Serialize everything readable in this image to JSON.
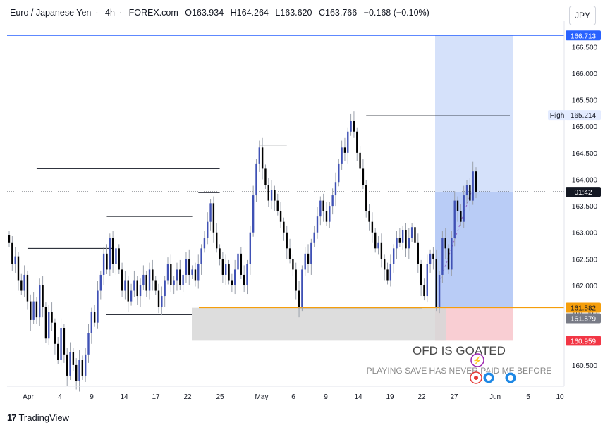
{
  "header": {
    "symbol": "Euro / Japanese Yen",
    "interval": "4h",
    "exchange": "FOREX.com",
    "open": "O163.934",
    "high": "H164.264",
    "low": "L163.620",
    "close": "C163.766",
    "change": "−0.168 (−0.10%)",
    "sep": "·"
  },
  "currency_button": "JPY",
  "footer": {
    "brand": "TradingView"
  },
  "annotations": {
    "title": "OFD IS GOATED",
    "subtitle": "PLAYING SAVE HAS NEVER PAID ME BEFORE"
  },
  "price_labels": {
    "top": "166.713",
    "high_tag": "High",
    "high_value": "165.214",
    "timer": "01:42",
    "stop_upper": "161.582",
    "stop_lower": "161.579",
    "loss": "160.959"
  },
  "colors": {
    "bull_body": "#3f51b5",
    "bear_body": "#000000",
    "profit_zone": "#b9cdf6",
    "loss_zone": "#f7bec4",
    "demand_zone": "#d7d7d7",
    "stop_line": "#f59e0b",
    "top_line": "#2962ff"
  },
  "chart_data": {
    "type": "candlestick",
    "symbol": "EURJPY",
    "timeframe": "4h",
    "ylim": [
      160.1,
      166.85
    ],
    "y_ticks": [
      "160.500",
      "161.000",
      "161.500",
      "162.000",
      "162.500",
      "163.000",
      "163.500",
      "164.000",
      "164.500",
      "165.000",
      "165.500",
      "166.000",
      "166.500"
    ],
    "x_ticks": [
      "Apr",
      "4",
      "9",
      "14",
      "17",
      "22",
      "25",
      "May",
      "6",
      "9",
      "14",
      "19",
      "22",
      "27",
      "Jun",
      "5",
      "10"
    ],
    "current_price": 163.766,
    "position": {
      "entry": 161.582,
      "stop": 160.959,
      "target": 166.713,
      "direction": "long"
    },
    "key_highs": [
      162.7,
      163.3,
      163.75,
      164.2,
      164.65,
      165.2
    ],
    "key_low": 161.58,
    "closes": [
      162.8,
      162.4,
      162.55,
      162.1,
      161.9,
      162.2,
      161.7,
      161.35,
      161.7,
      161.4,
      162.0,
      161.6,
      161.0,
      161.5,
      161.3,
      160.9,
      160.6,
      161.2,
      160.7,
      160.3,
      160.75,
      160.5,
      160.2,
      160.6,
      160.3,
      160.7,
      161.1,
      161.5,
      161.3,
      161.9,
      162.2,
      162.6,
      162.3,
      162.9,
      162.4,
      162.7,
      162.3,
      161.9,
      162.1,
      161.7,
      161.9,
      162.1,
      161.8,
      162.0,
      162.2,
      161.9,
      162.3,
      162.1,
      161.9,
      161.6,
      161.8,
      162.1,
      162.4,
      162.0,
      162.1,
      162.3,
      162.0,
      162.2,
      162.5,
      162.2,
      162.3,
      162.1,
      162.4,
      162.7,
      162.9,
      163.2,
      163.55,
      163.0,
      162.7,
      162.5,
      162.2,
      162.4,
      162.1,
      162.0,
      162.3,
      162.6,
      162.2,
      162.0,
      162.4,
      163.0,
      163.7,
      164.3,
      164.6,
      164.2,
      163.9,
      163.6,
      163.8,
      163.6,
      163.4,
      163.2,
      163.0,
      162.7,
      162.5,
      162.3,
      161.9,
      161.6,
      162.3,
      162.6,
      162.4,
      162.8,
      163.0,
      163.3,
      163.6,
      163.4,
      163.2,
      163.5,
      163.7,
      163.95,
      164.3,
      164.6,
      164.5,
      164.9,
      165.1,
      164.9,
      164.5,
      164.2,
      163.9,
      163.4,
      163.2,
      163.0,
      162.7,
      162.8,
      162.5,
      162.3,
      162.1,
      162.4,
      162.7,
      162.9,
      162.8,
      163.05,
      162.7,
      162.9,
      163.1,
      162.8,
      162.4,
      162.0,
      161.8,
      162.4,
      162.6,
      162.5,
      161.6,
      162.2,
      162.9,
      162.7,
      162.3,
      162.9,
      163.6,
      163.4,
      163.2,
      163.7,
      163.9,
      163.6,
      164.15,
      163.766
    ]
  }
}
